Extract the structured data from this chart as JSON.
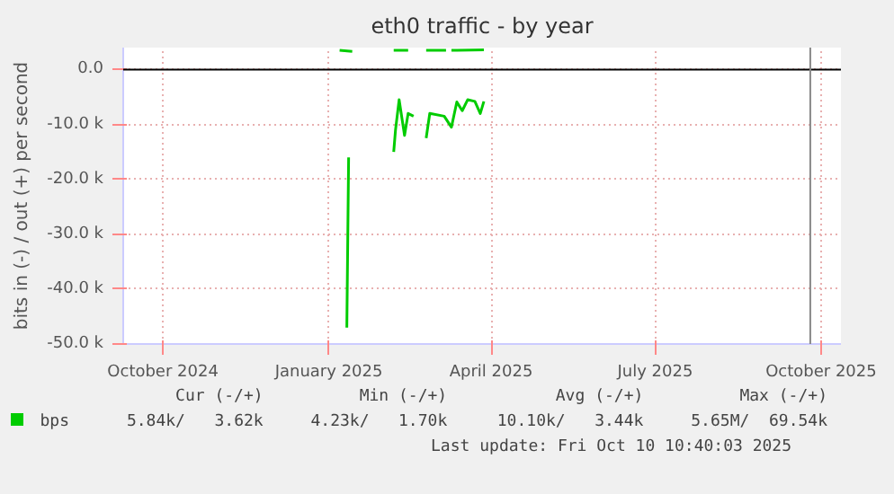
{
  "chart_data": {
    "type": "line",
    "title": "eth0 traffic - by year",
    "ylabel": "bits in (-) / out (+) per second",
    "xlim": [
      "2024-09-24",
      "2025-10-27"
    ],
    "ylim": [
      -50000,
      4000
    ],
    "xticks": [
      {
        "value": "2024-10-16",
        "label": "October 2024"
      },
      {
        "value": "2025-01-16",
        "label": "January 2025"
      },
      {
        "value": "2025-04-16",
        "label": "April 2025"
      },
      {
        "value": "2025-07-16",
        "label": "July 2025"
      },
      {
        "value": "2025-10-16",
        "label": "October 2025"
      }
    ],
    "yticks": [
      {
        "value": -50000,
        "label": "-50.0 k"
      },
      {
        "value": -40000,
        "label": "-40.0 k"
      },
      {
        "value": -30000,
        "label": "-30.0 k"
      },
      {
        "value": -20000,
        "label": "-20.0 k"
      },
      {
        "value": -10000,
        "label": "-10.0 k"
      },
      {
        "value": 0,
        "label": "0.0"
      }
    ],
    "grid": true,
    "legend": "bottom",
    "marker": "none",
    "line_style": "solid",
    "series": [
      {
        "name": "bps",
        "color": "#00cc00",
        "x": [
          "2025-01-26",
          "2025-01-27",
          "2025-01-28",
          "2025-02-21",
          "2025-02-22",
          "2025-02-24",
          "2025-02-27",
          "2025-03-01",
          "2025-03-04",
          "2025-03-06",
          "2025-03-11",
          "2025-03-13",
          "2025-03-21",
          "2025-03-25",
          "2025-03-28",
          "2025-03-31",
          "2025-04-03",
          "2025-04-07",
          "2025-04-10",
          "2025-04-12"
        ],
        "values": [
          -47000,
          -16000,
          null,
          -15000,
          -11000,
          -5500,
          -12000,
          -8000,
          -8500,
          null,
          -12500,
          -8000,
          -8500,
          -10500,
          -5900,
          -7500,
          -5500,
          -5800,
          -8000,
          -5800
        ]
      },
      {
        "color": "#00cc00",
        "x": [
          "2025-01-22",
          "2025-01-29",
          "2025-01-30",
          "2025-02-21",
          "2025-03-01",
          "2025-03-02",
          "2025-03-11",
          "2025-03-22",
          "2025-03-23",
          "2025-03-25",
          "2025-04-12"
        ],
        "values": [
          3500,
          3300,
          null,
          3500,
          3500,
          null,
          3500,
          3500,
          null,
          3500,
          3600
        ]
      }
    ],
    "ref_lines": [
      {
        "axis": "y",
        "value": 0,
        "label": null,
        "color": "#000000"
      },
      {
        "axis": "x",
        "value": "2025-10-10",
        "label": null,
        "color": "#888888"
      }
    ],
    "annotations": [
      "Cur (-/+)",
      "Min (-/+)",
      "Avg (-/+)",
      "Max (-/+)",
      "5.84k/   3.62k",
      "4.23k/   1.70k",
      "10.10k/   3.44k",
      "5.65M/  69.54k",
      "Last update: Fri Oct 10 10:40:03 2025"
    ]
  }
}
